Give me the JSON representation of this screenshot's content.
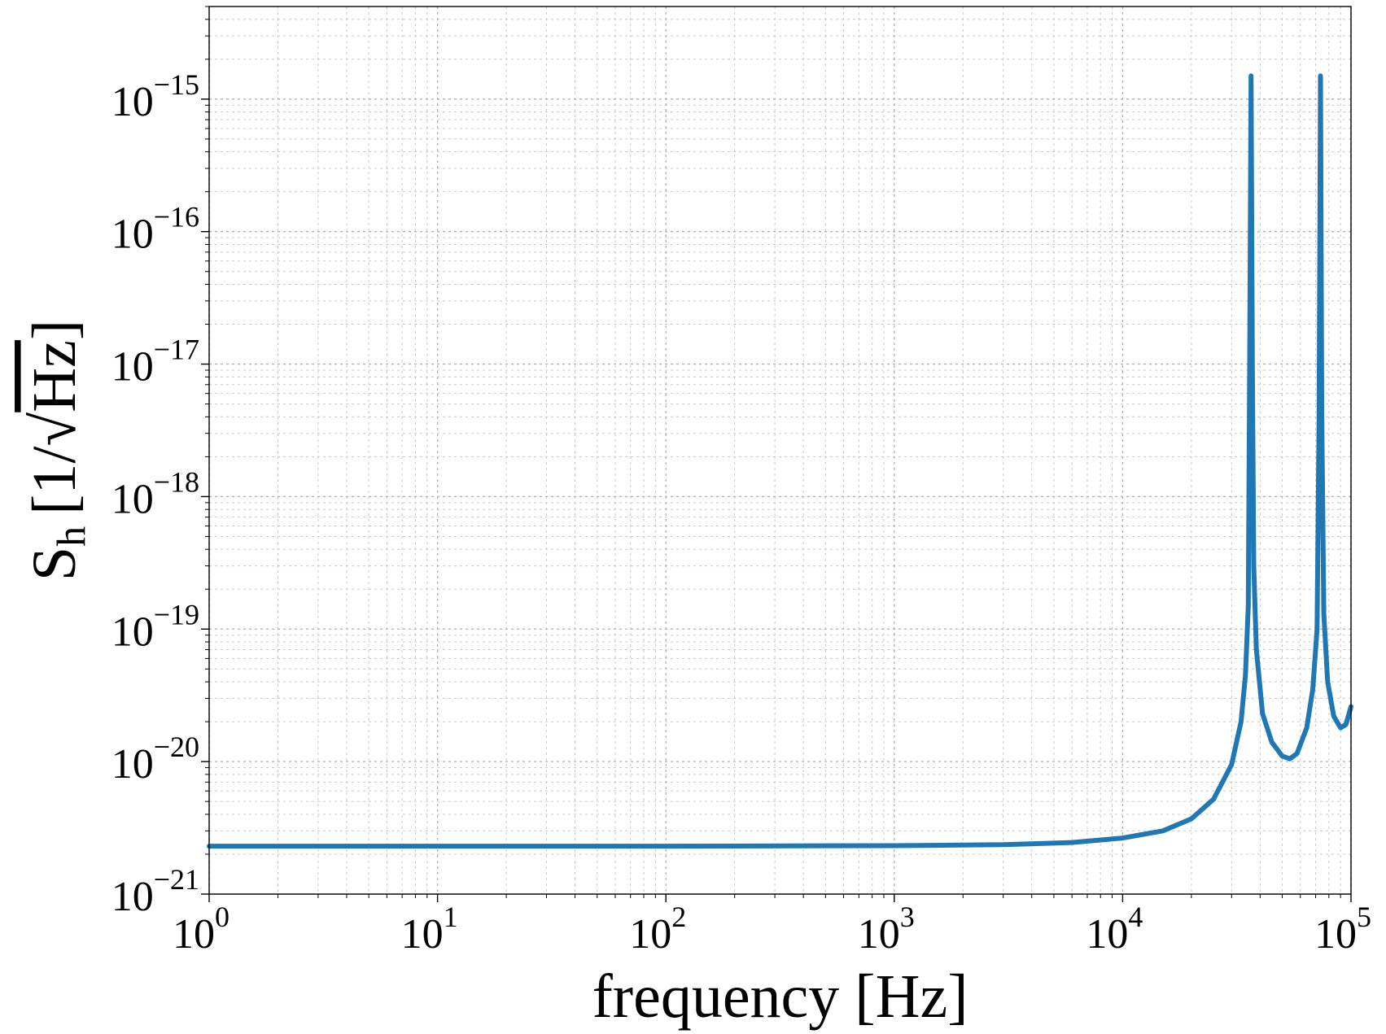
{
  "chart_data": {
    "type": "line",
    "x_scale": "log",
    "y_scale": "log",
    "xlim": [
      1,
      100000
    ],
    "ylim": [
      1e-21,
      5e-15
    ],
    "grid": true,
    "grid_minor": true,
    "x_ticks": [
      {
        "base": "10",
        "exp": "0"
      },
      {
        "base": "10",
        "exp": "1"
      },
      {
        "base": "10",
        "exp": "2"
      },
      {
        "base": "10",
        "exp": "3"
      },
      {
        "base": "10",
        "exp": "4"
      },
      {
        "base": "10",
        "exp": "5"
      }
    ],
    "y_ticks": [
      {
        "base": "10",
        "exp": "−21"
      },
      {
        "base": "10",
        "exp": "−20"
      },
      {
        "base": "10",
        "exp": "−19"
      },
      {
        "base": "10",
        "exp": "−18"
      },
      {
        "base": "10",
        "exp": "−17"
      },
      {
        "base": "10",
        "exp": "−16"
      },
      {
        "base": "10",
        "exp": "−15"
      }
    ],
    "xlabel": "frequency [Hz]",
    "ylabel": {
      "main": "S",
      "sub": "h",
      "unit_open": "[1/√",
      "unit_rad": "Hz",
      "unit_close": "]"
    },
    "series": [
      {
        "color": "#1f77b4",
        "points": [
          [
            1,
            2.3e-21
          ],
          [
            10,
            2.3e-21
          ],
          [
            100,
            2.3e-21
          ],
          [
            1000,
            2.32e-21
          ],
          [
            3000,
            2.36e-21
          ],
          [
            6000,
            2.45e-21
          ],
          [
            10000,
            2.65e-21
          ],
          [
            15000,
            3e-21
          ],
          [
            20000,
            3.7e-21
          ],
          [
            25000,
            5.2e-21
          ],
          [
            30000,
            9.5e-21
          ],
          [
            33000,
            2e-20
          ],
          [
            34500,
            4.5e-20
          ],
          [
            35500,
            1.5e-19
          ],
          [
            36000,
            1e-17
          ],
          [
            36500,
            1.5e-15
          ],
          [
            37000,
            1e-17
          ],
          [
            37500,
            3e-19
          ],
          [
            38500,
            7e-20
          ],
          [
            41000,
            2.3e-20
          ],
          [
            45000,
            1.4e-20
          ],
          [
            50000,
            1.1e-20
          ],
          [
            54000,
            1.05e-20
          ],
          [
            58000,
            1.15e-20
          ],
          [
            64000,
            1.8e-20
          ],
          [
            68000,
            3.5e-20
          ],
          [
            71000,
            1e-19
          ],
          [
            72500,
            4e-18
          ],
          [
            73500,
            1.5e-15
          ],
          [
            74500,
            4e-18
          ],
          [
            76000,
            1.3e-19
          ],
          [
            79000,
            4e-20
          ],
          [
            84000,
            2.2e-20
          ],
          [
            90000,
            1.8e-20
          ],
          [
            95000,
            1.9e-20
          ],
          [
            100000,
            2.6e-20
          ]
        ]
      }
    ]
  }
}
